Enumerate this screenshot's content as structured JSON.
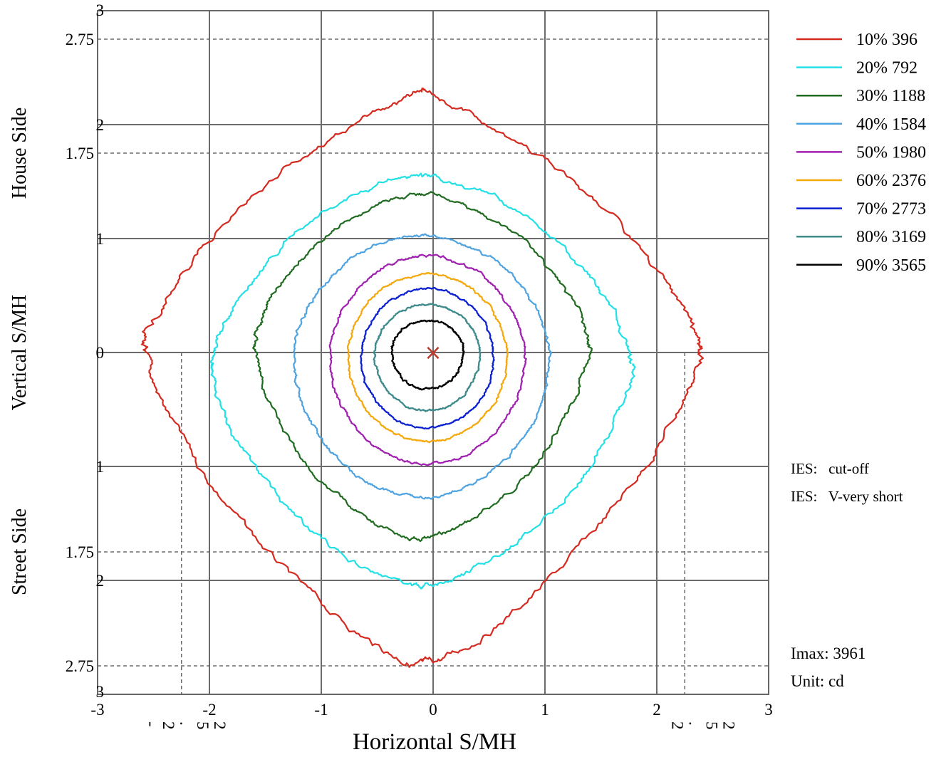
{
  "chart_data": {
    "type": "line",
    "subtype": "isocandela-contour",
    "xlabel": "Horizontal S/MH",
    "ylabel_top": "House Side",
    "ylabel_mid": "Vertical  S/MH",
    "ylabel_bottom": "Street Side",
    "xlim": [
      -3,
      3
    ],
    "ylim": [
      -3,
      3
    ],
    "x_ticks": [
      "-3",
      "-2",
      "-1",
      "0",
      "1",
      "2",
      "3"
    ],
    "y_ticks": [
      {
        "value": 3,
        "label": "3"
      },
      {
        "value": 2.75,
        "label": "2.75"
      },
      {
        "value": 2,
        "label": "2"
      },
      {
        "value": 1.75,
        "label": "1.75"
      },
      {
        "value": 1,
        "label": "1"
      },
      {
        "value": 0,
        "label": "0"
      },
      {
        "value": -1,
        "label": "1"
      },
      {
        "value": -1.75,
        "label": "1.75"
      },
      {
        "value": -2,
        "label": "2"
      },
      {
        "value": -2.75,
        "label": "2.75"
      },
      {
        "value": -3,
        "label": "3"
      }
    ],
    "x_extra_ticks": [
      {
        "value": -2.25,
        "glyphs": [
          "-",
          "2",
          ".",
          "5",
          "2"
        ]
      },
      {
        "value": 2.25,
        "glyphs": [
          "2",
          ".",
          "5",
          "2"
        ]
      }
    ],
    "grid_major_x": [
      -2,
      -1,
      0,
      1,
      2
    ],
    "grid_major_y": [
      -2,
      -1,
      0,
      1,
      2
    ],
    "grid_dashed_y": [
      2.75,
      1.75,
      -1.75,
      -2.75
    ],
    "grid_dashed_x": [
      -2.25,
      2.25
    ],
    "center_marker": {
      "x": 0,
      "y": 0,
      "symbol": "×",
      "color": "#c0392b"
    },
    "legend_position": "right",
    "series": [
      {
        "name": "10% 396",
        "percent": 10,
        "candela": 396,
        "color": "#d42a20",
        "x0": -0.1,
        "y0": 0.05,
        "rx": 2.5,
        "top": 2.22,
        "bottom": 2.8,
        "n": 1.35
      },
      {
        "name": "20% 792",
        "percent": 20,
        "candela": 792,
        "color": "#22e0e6",
        "x0": -0.1,
        "y0": -0.1,
        "rx": 1.88,
        "top": 1.67,
        "bottom": 1.96,
        "n": 1.55
      },
      {
        "name": "30% 1188",
        "percent": 30,
        "candela": 1188,
        "color": "#1f6b1f",
        "x0": -0.1,
        "y0": 0.05,
        "rx": 1.49,
        "top": 1.35,
        "bottom": 1.68,
        "n": 1.6
      },
      {
        "name": "40% 1584",
        "percent": 40,
        "candela": 1584,
        "color": "#4fa3e0",
        "x0": -0.1,
        "y0": -0.07,
        "rx": 1.15,
        "top": 1.1,
        "bottom": 1.2,
        "n": 1.85
      },
      {
        "name": "50% 1980",
        "percent": 50,
        "candela": 1980,
        "color": "#a020b0",
        "x0": -0.05,
        "y0": -0.05,
        "rx": 0.87,
        "top": 0.9,
        "bottom": 0.93,
        "n": 1.9
      },
      {
        "name": "60% 2376",
        "percent": 60,
        "candela": 2376,
        "color": "#f4a80c",
        "x0": -0.05,
        "y0": -0.05,
        "rx": 0.71,
        "top": 0.74,
        "bottom": 0.73,
        "n": 1.95
      },
      {
        "name": "70% 2773",
        "percent": 70,
        "candela": 2773,
        "color": "#0a1fd0",
        "x0": -0.05,
        "y0": -0.05,
        "rx": 0.59,
        "top": 0.61,
        "bottom": 0.61,
        "n": 2.0
      },
      {
        "name": "80% 3169",
        "percent": 80,
        "candela": 3169,
        "color": "#3e8a8a",
        "x0": -0.05,
        "y0": -0.02,
        "rx": 0.47,
        "top": 0.44,
        "bottom": 0.49,
        "n": 2.0
      },
      {
        "name": "90% 3565",
        "percent": 90,
        "candela": 3565,
        "color": "#000000",
        "x0": -0.05,
        "y0": 0.0,
        "rx": 0.32,
        "top": 0.28,
        "bottom": 0.32,
        "n": 2.0
      }
    ]
  },
  "info": {
    "ies_cutoff": "IES:   cut-off",
    "ies_type": "IES:   V-very short",
    "imax": "Imax: 3961",
    "unit": "Unit: cd"
  }
}
